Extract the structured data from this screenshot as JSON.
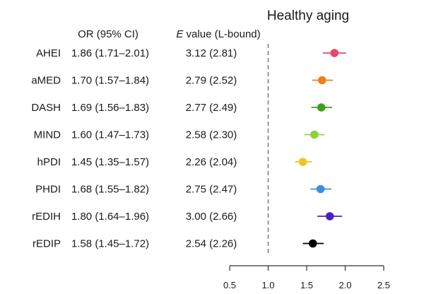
{
  "chart_data": {
    "type": "forest",
    "title": "Healthy aging",
    "columns": {
      "or_header": "OR (95% CI)",
      "e_header_italic": "E",
      "e_header_rest": " value (L-bound)"
    },
    "reference_line": 1.0,
    "xlim": [
      0.5,
      2.5
    ],
    "xticks": [
      "0.5",
      "1.0",
      "1.5",
      "2.0",
      "2.5"
    ],
    "grid": false,
    "rows": [
      {
        "label": "AHEI",
        "or": 1.86,
        "lower": 1.71,
        "upper": 2.01,
        "or_text": "1.86 (1.71–2.01)",
        "e_text": "3.12 (2.81)",
        "color": "#e8476e"
      },
      {
        "label": "aMED",
        "or": 1.7,
        "lower": 1.57,
        "upper": 1.84,
        "or_text": "1.70 (1.57–1.84)",
        "e_text": "2.79 (2.52)",
        "color": "#f07f1a"
      },
      {
        "label": "DASH",
        "or": 1.69,
        "lower": 1.56,
        "upper": 1.83,
        "or_text": "1.69 (1.56–1.83)",
        "e_text": "2.77 (2.49)",
        "color": "#3f9d22"
      },
      {
        "label": "MIND",
        "or": 1.6,
        "lower": 1.47,
        "upper": 1.73,
        "or_text": "1.60 (1.47–1.73)",
        "e_text": "2.58 (2.30)",
        "color": "#8dd13d"
      },
      {
        "label": "hPDI",
        "or": 1.45,
        "lower": 1.35,
        "upper": 1.57,
        "or_text": "1.45 (1.35–1.57)",
        "e_text": "2.26 (2.04)",
        "color": "#f6c21f"
      },
      {
        "label": "PHDI",
        "or": 1.68,
        "lower": 1.55,
        "upper": 1.82,
        "or_text": "1.68 (1.55–1.82)",
        "e_text": "2.75 (2.47)",
        "color": "#3c8fe0"
      },
      {
        "label": "rEDIH",
        "or": 1.8,
        "lower": 1.64,
        "upper": 1.96,
        "or_text": "1.80 (1.64–1.96)",
        "e_text": "3.00 (2.66)",
        "color": "#4a1fc9"
      },
      {
        "label": "rEDIP",
        "or": 1.58,
        "lower": 1.45,
        "upper": 1.72,
        "or_text": "1.58 (1.45–1.72)",
        "e_text": "2.54 (2.26)",
        "color": "#000000"
      }
    ]
  }
}
